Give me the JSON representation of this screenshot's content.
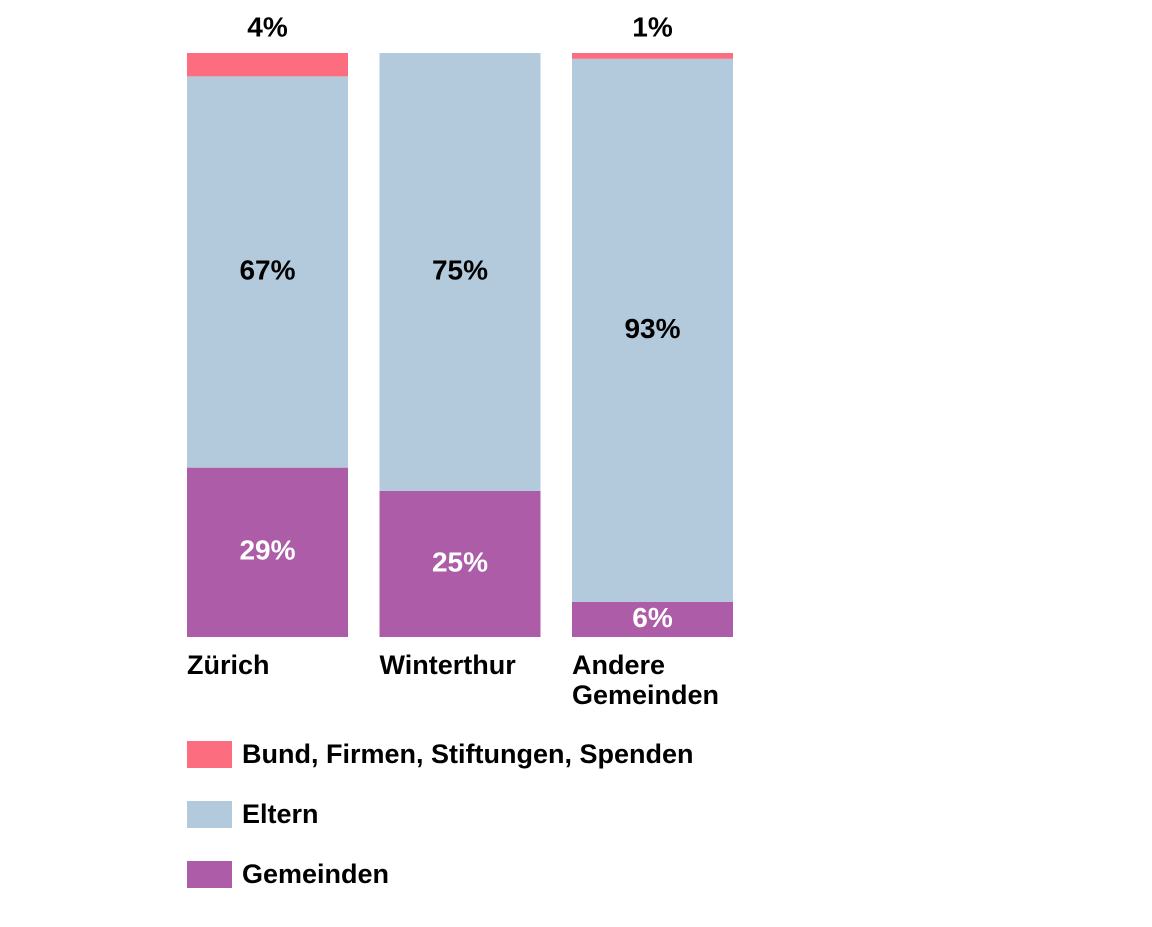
{
  "chart_data": {
    "type": "bar",
    "stacked": true,
    "categories": [
      "Zürich",
      "Winterthur",
      "Andere Gemeinden"
    ],
    "ylim": [
      0,
      100
    ],
    "series": [
      {
        "name": "Bund, Firmen, Stiftungen, Spenden",
        "color": "#fd6d80",
        "values": [
          4,
          0,
          1
        ],
        "value_labels": [
          "4%",
          null,
          "1%"
        ]
      },
      {
        "name": "Eltern",
        "color": "#b3cadc",
        "values": [
          67,
          75,
          93
        ],
        "value_labels": [
          "67%",
          "75%",
          "93%"
        ]
      },
      {
        "name": "Gemeinden",
        "color": "#ad5ca8",
        "values": [
          29,
          25,
          6
        ],
        "value_labels": [
          "29%",
          "25%",
          "6%"
        ]
      }
    ]
  }
}
